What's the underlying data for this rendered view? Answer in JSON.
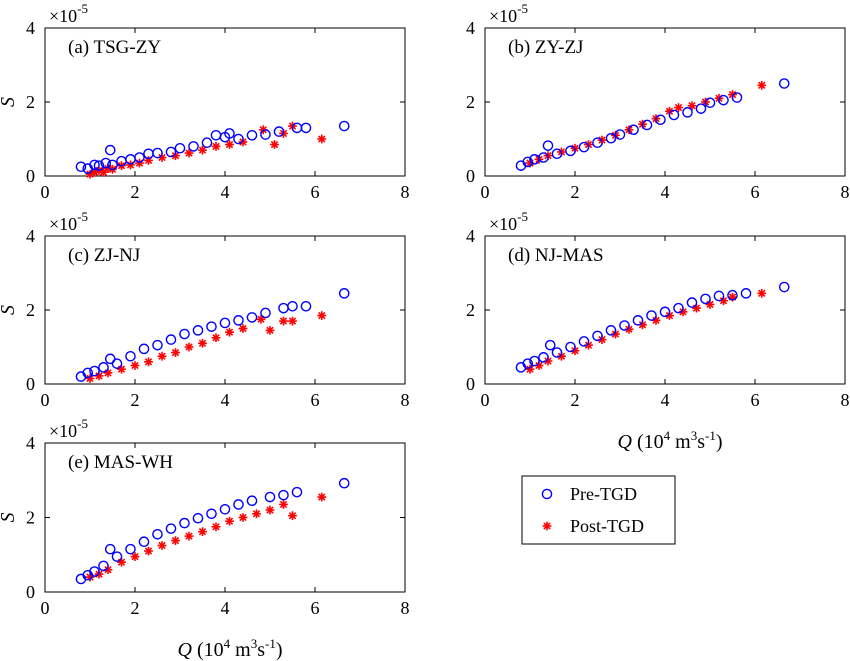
{
  "colors": {
    "pre": "#0000ff",
    "post": "#ff0000",
    "axis": "#000000"
  },
  "legend": {
    "placement": "lower-right",
    "entries": [
      {
        "label": "Pre-TGD",
        "marker": "circle-open",
        "color": "#0000ff"
      },
      {
        "label": "Post-TGD",
        "marker": "asterisk",
        "color": "#ff0000"
      }
    ]
  },
  "axis_text": {
    "ylabel": "S",
    "xlabel_main": "Q",
    "xlabel_unit_open": " (10",
    "xlabel_sup1": "4",
    "xlabel_unit_mid": " m",
    "xlabel_sup2": "3",
    "xlabel_unit_mid2": "s",
    "xlabel_sup3": "-1",
    "xlabel_close": ")",
    "exp_base": "×10",
    "exp_power": "-5"
  },
  "chart_data": [
    {
      "type": "scatter",
      "title": "(a) TSG-ZY",
      "xlim": [
        0,
        8
      ],
      "ylim": [
        0,
        4
      ],
      "xticks": [
        0,
        2,
        4,
        6,
        8
      ],
      "yticks": [
        0,
        2,
        4
      ],
      "ylabel": "S",
      "xlabel": "",
      "y_scale_note": "×10^-5",
      "grid": false,
      "series": [
        {
          "name": "Pre-TGD",
          "points": [
            [
              0.8,
              0.25
            ],
            [
              0.95,
              0.2
            ],
            [
              1.1,
              0.3
            ],
            [
              1.2,
              0.28
            ],
            [
              1.35,
              0.35
            ],
            [
              1.45,
              0.7
            ],
            [
              1.5,
              0.3
            ],
            [
              1.7,
              0.4
            ],
            [
              1.9,
              0.45
            ],
            [
              2.1,
              0.5
            ],
            [
              2.3,
              0.6
            ],
            [
              2.5,
              0.62
            ],
            [
              2.8,
              0.65
            ],
            [
              3.0,
              0.75
            ],
            [
              3.3,
              0.8
            ],
            [
              3.6,
              0.9
            ],
            [
              3.8,
              1.1
            ],
            [
              4.0,
              1.05
            ],
            [
              4.1,
              1.15
            ],
            [
              4.3,
              1.0
            ],
            [
              4.6,
              1.1
            ],
            [
              4.9,
              1.12
            ],
            [
              5.2,
              1.2
            ],
            [
              5.6,
              1.3
            ],
            [
              5.8,
              1.3
            ],
            [
              6.65,
              1.35
            ]
          ]
        },
        {
          "name": "Post-TGD",
          "points": [
            [
              1.0,
              0.05
            ],
            [
              1.1,
              0.1
            ],
            [
              1.2,
              0.15
            ],
            [
              1.3,
              0.1
            ],
            [
              1.4,
              0.2
            ],
            [
              1.5,
              0.18
            ],
            [
              1.7,
              0.28
            ],
            [
              1.9,
              0.3
            ],
            [
              2.1,
              0.35
            ],
            [
              2.3,
              0.42
            ],
            [
              2.6,
              0.5
            ],
            [
              2.9,
              0.55
            ],
            [
              3.2,
              0.62
            ],
            [
              3.5,
              0.7
            ],
            [
              3.8,
              0.8
            ],
            [
              4.1,
              0.85
            ],
            [
              4.4,
              0.92
            ],
            [
              4.85,
              1.25
            ],
            [
              5.1,
              0.85
            ],
            [
              5.3,
              1.15
            ],
            [
              5.5,
              1.35
            ],
            [
              6.15,
              1.0
            ]
          ]
        }
      ]
    },
    {
      "type": "scatter",
      "title": "(b) ZY-ZJ",
      "xlim": [
        0,
        8
      ],
      "ylim": [
        0,
        4
      ],
      "xticks": [
        0,
        2,
        4,
        6,
        8
      ],
      "yticks": [
        0,
        2,
        4
      ],
      "ylabel": "",
      "xlabel": "",
      "y_scale_note": "×10^-5",
      "grid": false,
      "series": [
        {
          "name": "Pre-TGD",
          "points": [
            [
              0.8,
              0.28
            ],
            [
              0.95,
              0.38
            ],
            [
              1.1,
              0.45
            ],
            [
              1.3,
              0.5
            ],
            [
              1.4,
              0.82
            ],
            [
              1.6,
              0.6
            ],
            [
              1.9,
              0.68
            ],
            [
              2.2,
              0.78
            ],
            [
              2.5,
              0.9
            ],
            [
              2.8,
              1.02
            ],
            [
              3.0,
              1.12
            ],
            [
              3.3,
              1.25
            ],
            [
              3.6,
              1.38
            ],
            [
              3.9,
              1.52
            ],
            [
              4.2,
              1.65
            ],
            [
              4.5,
              1.72
            ],
            [
              4.8,
              1.82
            ],
            [
              5.0,
              1.98
            ],
            [
              5.3,
              2.05
            ],
            [
              5.6,
              2.12
            ],
            [
              6.65,
              2.5
            ]
          ]
        },
        {
          "name": "Post-TGD",
          "points": [
            [
              1.0,
              0.35
            ],
            [
              1.2,
              0.45
            ],
            [
              1.4,
              0.55
            ],
            [
              1.7,
              0.65
            ],
            [
              2.0,
              0.75
            ],
            [
              2.3,
              0.85
            ],
            [
              2.6,
              0.97
            ],
            [
              2.9,
              1.1
            ],
            [
              3.2,
              1.25
            ],
            [
              3.5,
              1.4
            ],
            [
              3.8,
              1.55
            ],
            [
              4.1,
              1.75
            ],
            [
              4.3,
              1.85
            ],
            [
              4.6,
              1.9
            ],
            [
              4.9,
              2.0
            ],
            [
              5.2,
              2.1
            ],
            [
              5.5,
              2.2
            ],
            [
              6.15,
              2.45
            ]
          ]
        }
      ]
    },
    {
      "type": "scatter",
      "title": "(c) ZJ-NJ",
      "xlim": [
        0,
        8
      ],
      "ylim": [
        0,
        4
      ],
      "xticks": [
        0,
        2,
        4,
        6,
        8
      ],
      "yticks": [
        0,
        2,
        4
      ],
      "ylabel": "S",
      "xlabel": "",
      "y_scale_note": "×10^-5",
      "grid": false,
      "series": [
        {
          "name": "Pre-TGD",
          "points": [
            [
              0.8,
              0.2
            ],
            [
              0.95,
              0.3
            ],
            [
              1.1,
              0.35
            ],
            [
              1.3,
              0.45
            ],
            [
              1.45,
              0.68
            ],
            [
              1.6,
              0.55
            ],
            [
              1.9,
              0.75
            ],
            [
              2.2,
              0.95
            ],
            [
              2.5,
              1.05
            ],
            [
              2.8,
              1.2
            ],
            [
              3.1,
              1.35
            ],
            [
              3.4,
              1.45
            ],
            [
              3.7,
              1.55
            ],
            [
              4.0,
              1.65
            ],
            [
              4.3,
              1.72
            ],
            [
              4.6,
              1.8
            ],
            [
              4.9,
              1.92
            ],
            [
              5.3,
              2.05
            ],
            [
              5.5,
              2.1
            ],
            [
              5.8,
              2.1
            ],
            [
              6.65,
              2.45
            ]
          ]
        },
        {
          "name": "Post-TGD",
          "points": [
            [
              1.0,
              0.15
            ],
            [
              1.2,
              0.22
            ],
            [
              1.4,
              0.3
            ],
            [
              1.7,
              0.4
            ],
            [
              2.0,
              0.5
            ],
            [
              2.3,
              0.6
            ],
            [
              2.6,
              0.75
            ],
            [
              2.9,
              0.85
            ],
            [
              3.2,
              1.0
            ],
            [
              3.5,
              1.1
            ],
            [
              3.8,
              1.25
            ],
            [
              4.1,
              1.4
            ],
            [
              4.4,
              1.5
            ],
            [
              4.8,
              1.75
            ],
            [
              5.0,
              1.45
            ],
            [
              5.3,
              1.7
            ],
            [
              5.5,
              1.7
            ],
            [
              6.15,
              1.85
            ]
          ]
        }
      ]
    },
    {
      "type": "scatter",
      "title": "(d) NJ-MAS",
      "xlim": [
        0,
        8
      ],
      "ylim": [
        0,
        4
      ],
      "xticks": [
        0,
        2,
        4,
        6,
        8
      ],
      "yticks": [
        0,
        2,
        4
      ],
      "ylabel": "",
      "xlabel": "Q (10^4 m^3s^-1)",
      "y_scale_note": "×10^-5",
      "grid": false,
      "series": [
        {
          "name": "Pre-TGD",
          "points": [
            [
              0.8,
              0.45
            ],
            [
              0.95,
              0.55
            ],
            [
              1.1,
              0.62
            ],
            [
              1.3,
              0.72
            ],
            [
              1.45,
              1.05
            ],
            [
              1.6,
              0.85
            ],
            [
              1.9,
              1.0
            ],
            [
              2.2,
              1.15
            ],
            [
              2.5,
              1.3
            ],
            [
              2.8,
              1.45
            ],
            [
              3.1,
              1.58
            ],
            [
              3.4,
              1.72
            ],
            [
              3.7,
              1.85
            ],
            [
              4.0,
              1.95
            ],
            [
              4.3,
              2.05
            ],
            [
              4.6,
              2.2
            ],
            [
              4.9,
              2.3
            ],
            [
              5.2,
              2.38
            ],
            [
              5.5,
              2.4
            ],
            [
              5.8,
              2.45
            ],
            [
              6.65,
              2.62
            ]
          ]
        },
        {
          "name": "Post-TGD",
          "points": [
            [
              1.0,
              0.4
            ],
            [
              1.2,
              0.5
            ],
            [
              1.4,
              0.62
            ],
            [
              1.7,
              0.75
            ],
            [
              2.0,
              0.9
            ],
            [
              2.3,
              1.05
            ],
            [
              2.6,
              1.2
            ],
            [
              2.9,
              1.35
            ],
            [
              3.2,
              1.48
            ],
            [
              3.5,
              1.6
            ],
            [
              3.8,
              1.72
            ],
            [
              4.1,
              1.85
            ],
            [
              4.4,
              1.95
            ],
            [
              4.7,
              2.05
            ],
            [
              5.0,
              2.15
            ],
            [
              5.3,
              2.25
            ],
            [
              5.5,
              2.35
            ],
            [
              6.15,
              2.45
            ]
          ]
        }
      ]
    },
    {
      "type": "scatter",
      "title": "(e) MAS-WH",
      "xlim": [
        0,
        8
      ],
      "ylim": [
        0,
        4
      ],
      "xticks": [
        0,
        2,
        4,
        6,
        8
      ],
      "yticks": [
        0,
        2,
        4
      ],
      "ylabel": "S",
      "xlabel": "Q (10^4 m^3s^-1)",
      "y_scale_note": "×10^-5",
      "grid": false,
      "series": [
        {
          "name": "Pre-TGD",
          "points": [
            [
              0.8,
              0.35
            ],
            [
              0.95,
              0.45
            ],
            [
              1.1,
              0.55
            ],
            [
              1.3,
              0.7
            ],
            [
              1.45,
              1.15
            ],
            [
              1.6,
              0.95
            ],
            [
              1.9,
              1.15
            ],
            [
              2.2,
              1.35
            ],
            [
              2.5,
              1.55
            ],
            [
              2.8,
              1.7
            ],
            [
              3.1,
              1.85
            ],
            [
              3.4,
              1.98
            ],
            [
              3.7,
              2.1
            ],
            [
              4.0,
              2.22
            ],
            [
              4.3,
              2.35
            ],
            [
              4.6,
              2.45
            ],
            [
              5.0,
              2.55
            ],
            [
              5.3,
              2.6
            ],
            [
              5.6,
              2.68
            ],
            [
              6.65,
              2.92
            ]
          ]
        },
        {
          "name": "Post-TGD",
          "points": [
            [
              1.0,
              0.4
            ],
            [
              1.2,
              0.48
            ],
            [
              1.4,
              0.6
            ],
            [
              1.7,
              0.8
            ],
            [
              2.0,
              0.95
            ],
            [
              2.3,
              1.1
            ],
            [
              2.6,
              1.25
            ],
            [
              2.9,
              1.38
            ],
            [
              3.2,
              1.5
            ],
            [
              3.5,
              1.62
            ],
            [
              3.8,
              1.75
            ],
            [
              4.1,
              1.9
            ],
            [
              4.4,
              2.0
            ],
            [
              4.7,
              2.1
            ],
            [
              5.0,
              2.2
            ],
            [
              5.3,
              2.35
            ],
            [
              5.5,
              2.05
            ],
            [
              6.15,
              2.55
            ]
          ]
        }
      ]
    }
  ]
}
